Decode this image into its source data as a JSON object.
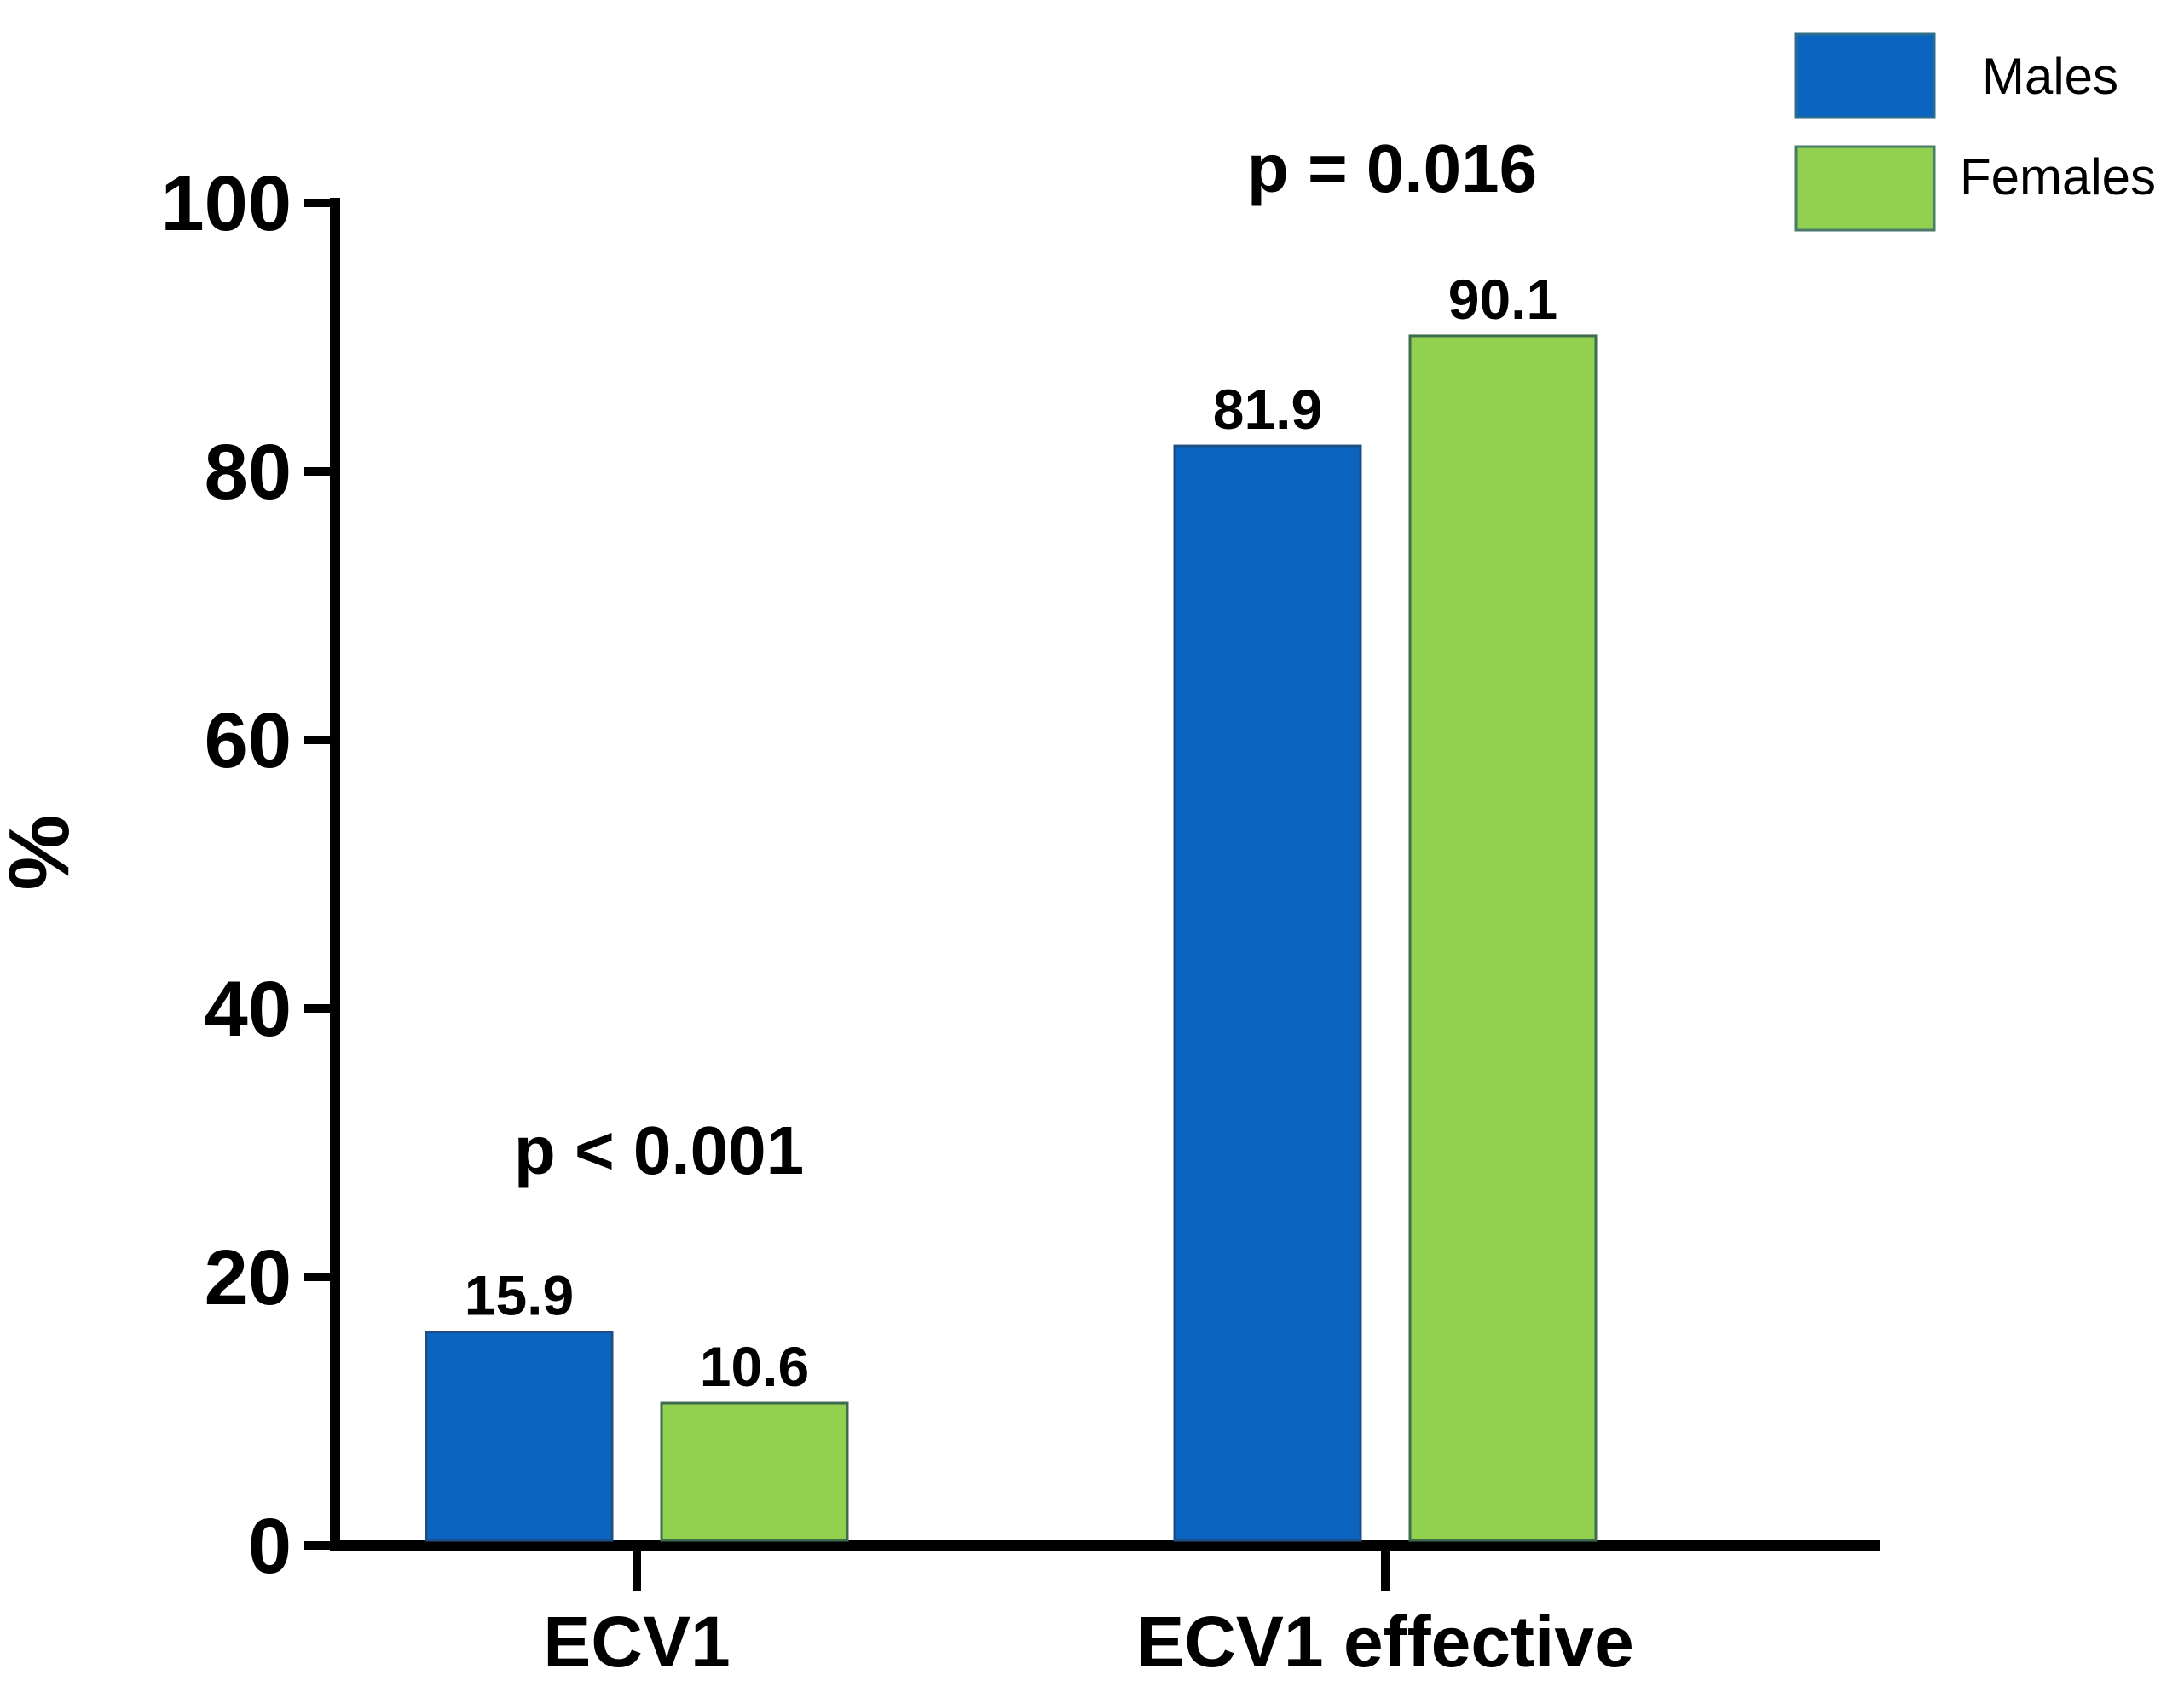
{
  "chart_data": {
    "type": "bar",
    "title": "",
    "xlabel": "",
    "ylabel": "%",
    "ylim": [
      0,
      100
    ],
    "yticks": [
      "0",
      "20",
      "40",
      "60",
      "80",
      "100"
    ],
    "categories": [
      "ECV1",
      "ECV1 effective"
    ],
    "series": [
      {
        "name": "Males",
        "values": [
          15.9,
          81.9
        ],
        "labels": [
          "15.9",
          "81.9"
        ],
        "color": "#0a64c0"
      },
      {
        "name": "Females",
        "values": [
          10.6,
          90.1
        ],
        "labels": [
          "10.6",
          "90.1"
        ],
        "color": "#92d050"
      }
    ],
    "annotations": [
      "p < 0.001",
      "p = 0.016"
    ],
    "legend_position": "top-right",
    "grid": false
  }
}
